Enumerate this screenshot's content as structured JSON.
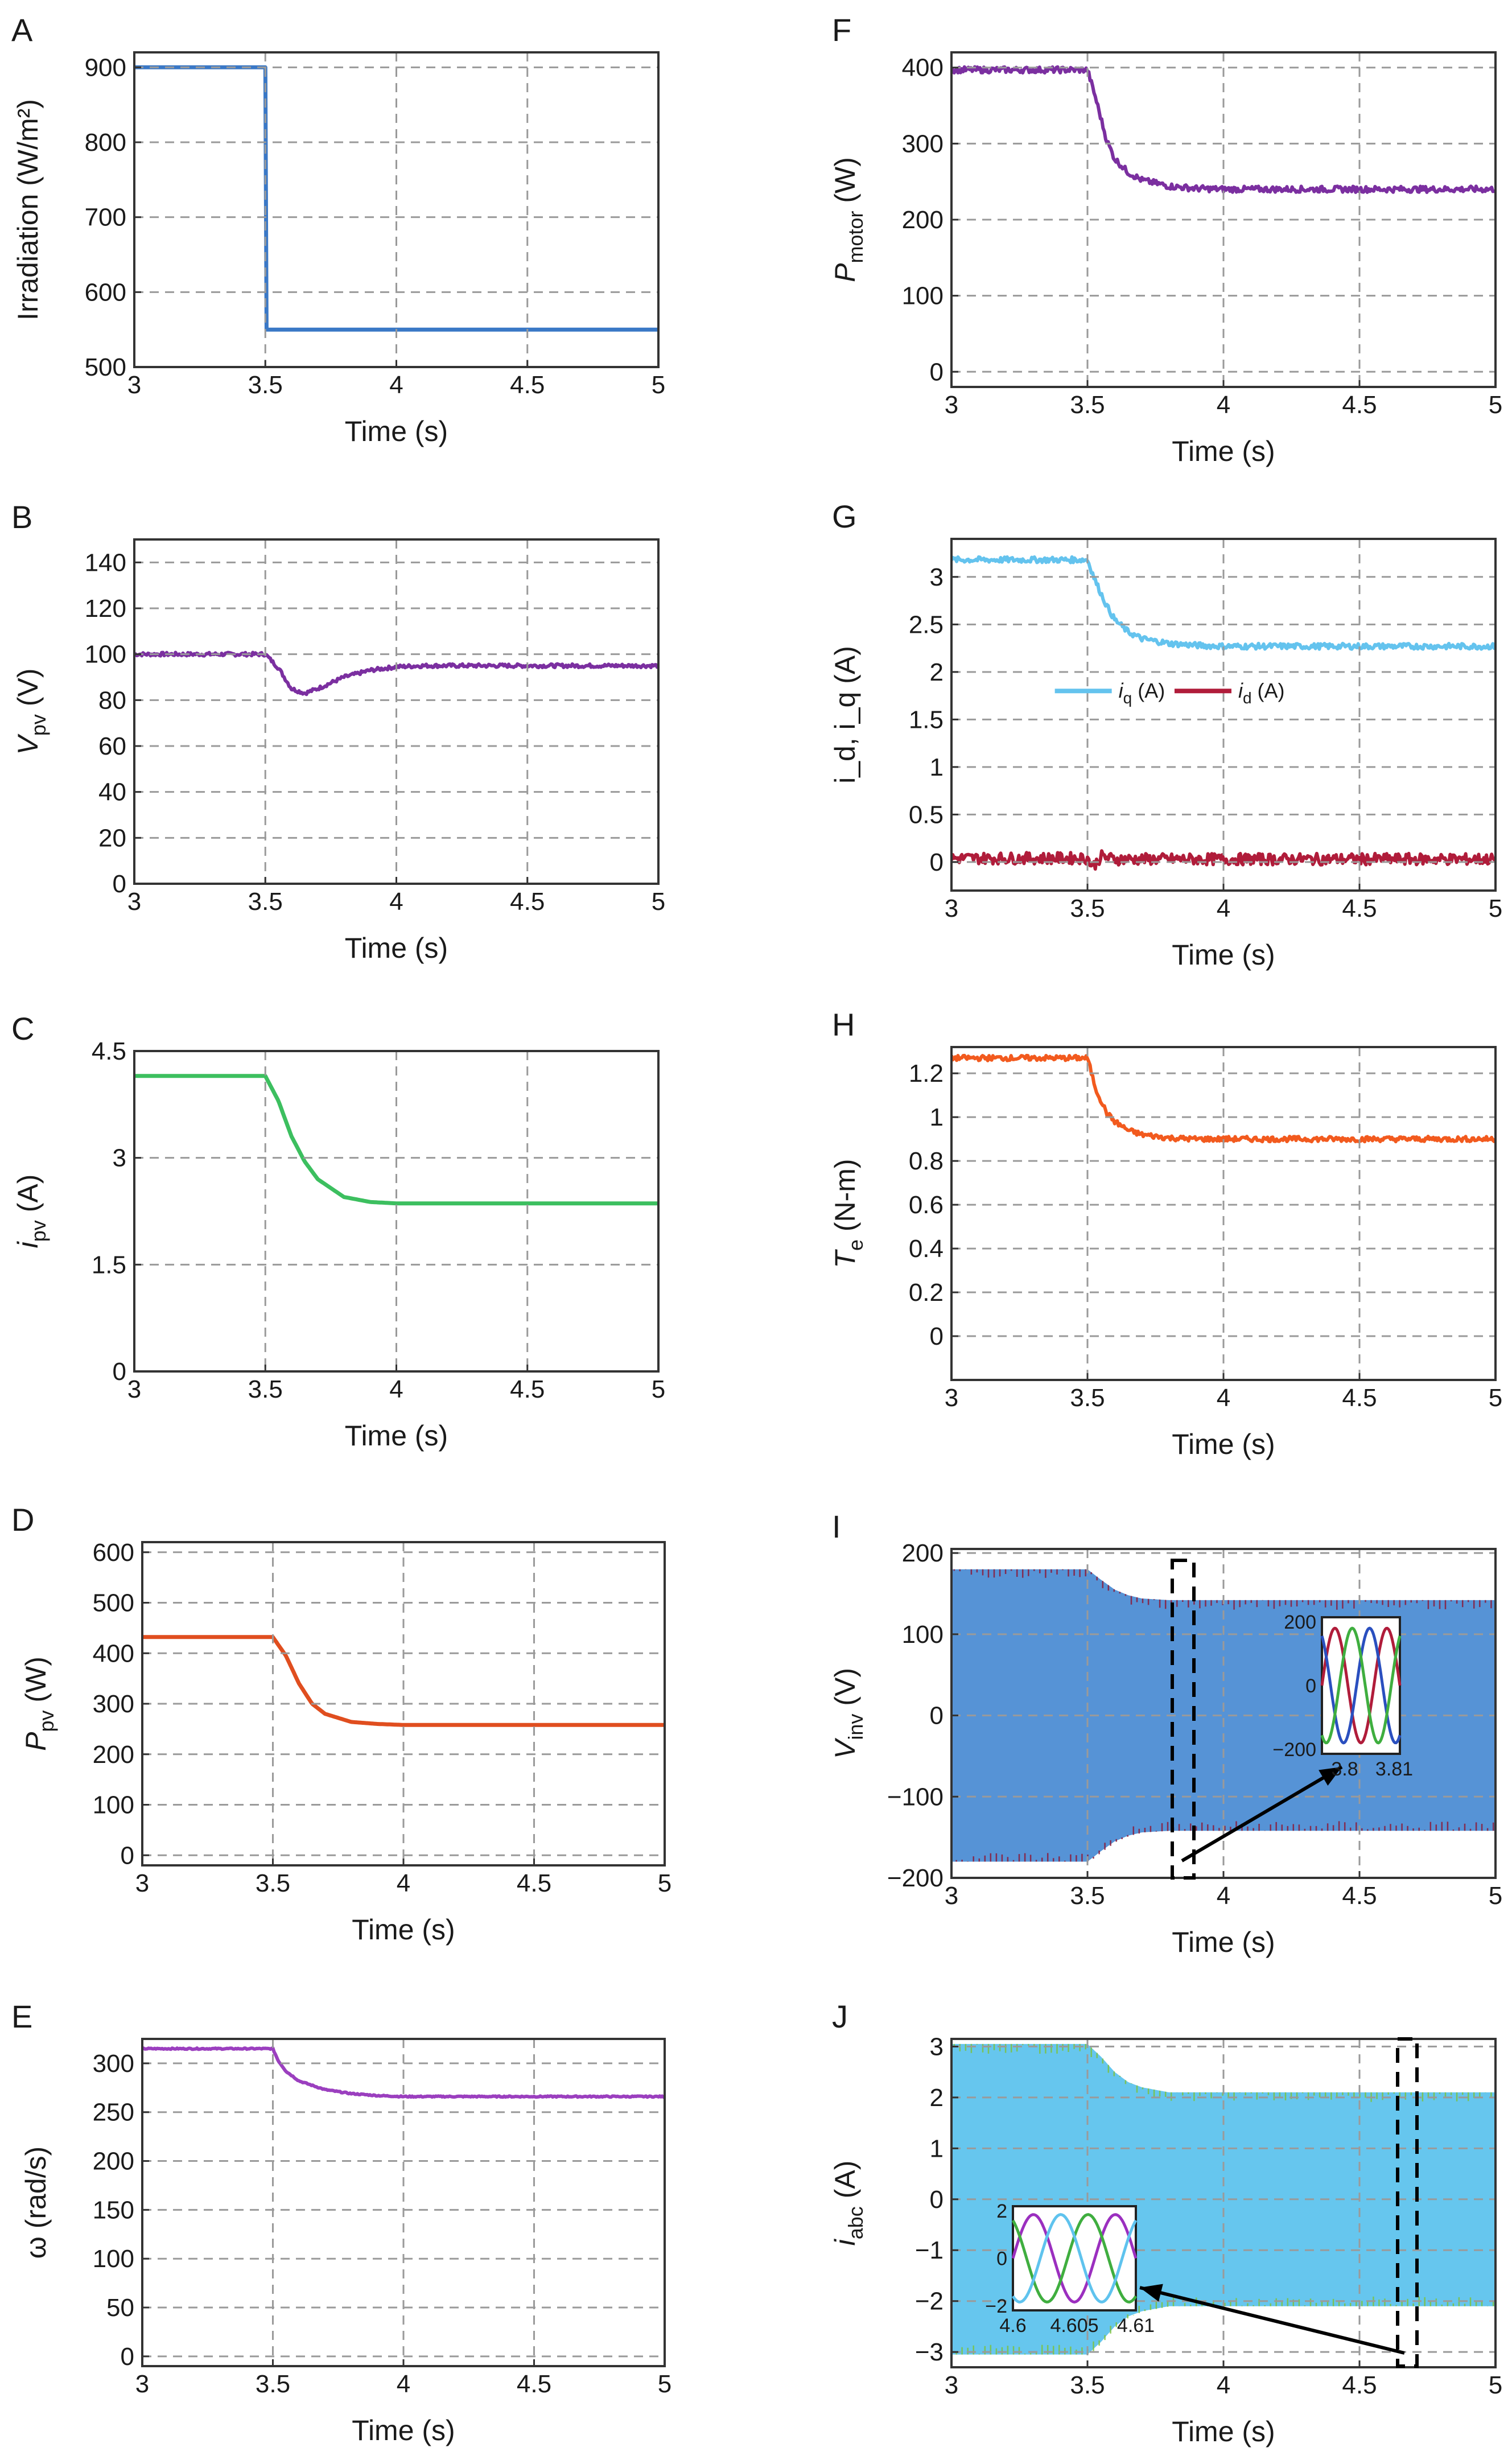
{
  "chart_data": [
    {
      "panel": "A",
      "type": "line",
      "xlabel": "Time (s)",
      "ylabel": "Irradiation (W/m²)",
      "xlim": [
        3,
        5
      ],
      "ylim": [
        500,
        920
      ],
      "xticks": [
        3,
        3.5,
        4,
        4.5,
        5
      ],
      "xtick_labels": [
        "3",
        "3.5",
        "4",
        "4.5",
        "5"
      ],
      "yticks": [
        500,
        600,
        700,
        800,
        900
      ],
      "ytick_labels": [
        "500",
        "600",
        "700",
        "800",
        "900"
      ],
      "grid": true,
      "series": [
        {
          "name": "Irradiation",
          "color": "#3a78c6",
          "noise": 0,
          "x": [
            3,
            3.5,
            3.5,
            5
          ],
          "y": [
            900,
            900,
            550,
            550
          ]
        }
      ]
    },
    {
      "panel": "B",
      "type": "line",
      "xlabel": "Time (s)",
      "ylabel": "V_pv (V)",
      "ylabel_main": "V",
      "ylabel_sub": "pv",
      "ylabel_unit": " (V)",
      "xlim": [
        3,
        5
      ],
      "ylim": [
        0,
        150
      ],
      "xticks": [
        3,
        3.5,
        4,
        4.5,
        5
      ],
      "xtick_labels": [
        "3",
        "3.5",
        "4",
        "4.5",
        "5"
      ],
      "yticks": [
        0,
        20,
        40,
        60,
        80,
        100,
        120,
        140
      ],
      "ytick_labels": [
        "0",
        "20",
        "40",
        "60",
        "80",
        "100",
        "120",
        "140"
      ],
      "grid": true,
      "series": [
        {
          "name": "Vpv",
          "color": "#7b2fa0",
          "noise": 0.8,
          "x": [
            3,
            3.5,
            3.55,
            3.6,
            3.65,
            3.7,
            3.8,
            3.9,
            4.0,
            4.1,
            5
          ],
          "y": [
            100,
            100,
            94,
            85,
            83,
            85,
            90,
            93,
            94.5,
            95,
            95
          ]
        }
      ]
    },
    {
      "panel": "C",
      "type": "line",
      "xlabel": "Time (s)",
      "ylabel": "i_pv (A)",
      "ylabel_main": "i",
      "ylabel_sub": "pv",
      "ylabel_unit": " (A)",
      "xlim": [
        3,
        5
      ],
      "ylim": [
        0,
        4.5
      ],
      "xticks": [
        3,
        3.5,
        4,
        4.5,
        5
      ],
      "xtick_labels": [
        "3",
        "3.5",
        "4",
        "4.5",
        "5"
      ],
      "yticks": [
        0,
        1.5,
        3,
        4.5
      ],
      "ytick_labels": [
        "0",
        "1.5",
        "3",
        "4.5"
      ],
      "grid": true,
      "series": [
        {
          "name": "ipv",
          "color": "#3cbf5f",
          "noise": 0,
          "x": [
            3,
            3.5,
            3.55,
            3.6,
            3.65,
            3.7,
            3.8,
            3.9,
            4.0,
            5
          ],
          "y": [
            4.15,
            4.15,
            3.8,
            3.3,
            2.95,
            2.7,
            2.45,
            2.38,
            2.36,
            2.36
          ]
        }
      ]
    },
    {
      "panel": "D",
      "type": "line",
      "xlabel": "Time (s)",
      "ylabel": "P_pv (W)",
      "ylabel_main": "P",
      "ylabel_sub": "pv",
      "ylabel_unit": " (W)",
      "xlim": [
        3,
        5
      ],
      "ylim": [
        -20,
        620
      ],
      "xticks": [
        3,
        3.5,
        4,
        4.5,
        5
      ],
      "xtick_labels": [
        "3",
        "3.5",
        "4",
        "4.5",
        "5"
      ],
      "yticks": [
        0,
        100,
        200,
        300,
        400,
        500,
        600
      ],
      "ytick_labels": [
        "0",
        "100",
        "200",
        "300",
        "400",
        "500",
        "600"
      ],
      "grid": true,
      "series": [
        {
          "name": "Ppv",
          "color": "#e04e1f",
          "noise": 0,
          "x": [
            3,
            3.5,
            3.55,
            3.6,
            3.65,
            3.7,
            3.8,
            3.9,
            4.0,
            5
          ],
          "y": [
            432,
            432,
            395,
            340,
            300,
            280,
            264,
            260,
            258,
            258
          ]
        }
      ]
    },
    {
      "panel": "E",
      "type": "line",
      "xlabel": "Time (s)",
      "ylabel": "ω (rad/s)",
      "xlim": [
        3,
        5
      ],
      "ylim": [
        -10,
        325
      ],
      "xticks": [
        3,
        3.5,
        4,
        4.5,
        5
      ],
      "xtick_labels": [
        "3",
        "3.5",
        "4",
        "4.5",
        "5"
      ],
      "yticks": [
        0,
        50,
        100,
        150,
        200,
        250,
        300
      ],
      "ytick_labels": [
        "0",
        "50",
        "100",
        "150",
        "200",
        "250",
        "300"
      ],
      "grid": true,
      "series": [
        {
          "name": "omega",
          "color": "#9b3fbf",
          "noise": 0.6,
          "x": [
            3,
            3.5,
            3.52,
            3.55,
            3.6,
            3.7,
            3.8,
            3.9,
            4.0,
            5
          ],
          "y": [
            315,
            315,
            303,
            292,
            282,
            273,
            269,
            267,
            266,
            266
          ]
        }
      ]
    },
    {
      "panel": "F",
      "type": "line",
      "xlabel": "Time (s)",
      "ylabel": "P_motor (W)",
      "ylabel_main": "P",
      "ylabel_sub": "motor",
      "ylabel_unit": " (W)",
      "xlim": [
        3,
        5
      ],
      "ylim": [
        -20,
        420
      ],
      "xticks": [
        3,
        3.5,
        4,
        4.5,
        5
      ],
      "xtick_labels": [
        "3",
        "3.5",
        "4",
        "4.5",
        "5"
      ],
      "yticks": [
        0,
        100,
        200,
        300,
        400
      ],
      "ytick_labels": [
        "0",
        "100",
        "200",
        "300",
        "400"
      ],
      "grid": true,
      "series": [
        {
          "name": "Pmotor",
          "color": "#7b2fa0",
          "noise": 4,
          "x": [
            3,
            3.5,
            3.53,
            3.57,
            3.6,
            3.65,
            3.7,
            3.8,
            3.9,
            4.0,
            5
          ],
          "y": [
            397,
            397,
            360,
            305,
            280,
            262,
            252,
            244,
            241,
            240,
            240
          ]
        }
      ]
    },
    {
      "panel": "G",
      "type": "line",
      "xlabel": "Time (s)",
      "ylabel": "i_d, i_q (A)",
      "xlim": [
        3,
        5
      ],
      "ylim": [
        -0.3,
        3.4
      ],
      "xticks": [
        3,
        3.5,
        4,
        4.5,
        5
      ],
      "xtick_labels": [
        "3",
        "3.5",
        "4",
        "4.5",
        "5"
      ],
      "yticks": [
        0,
        0.5,
        1,
        1.5,
        2,
        2.5,
        3
      ],
      "ytick_labels": [
        "0",
        "0.5",
        "1",
        "1.5",
        "2",
        "2.5",
        "3"
      ],
      "grid": true,
      "legend_label_i": "i",
      "legend_sub_q": "q",
      "legend_sub_d": "d",
      "legend_unit": " (A)",
      "series": [
        {
          "name": "iq (A)",
          "color": "#64c3ee",
          "noise": 0.03,
          "x": [
            3,
            3.5,
            3.53,
            3.57,
            3.6,
            3.65,
            3.7,
            3.8,
            3.9,
            4.0,
            5
          ],
          "y": [
            3.18,
            3.18,
            2.95,
            2.7,
            2.55,
            2.42,
            2.35,
            2.3,
            2.28,
            2.27,
            2.27
          ]
        },
        {
          "name": "id (A)",
          "color": "#b01c3a",
          "noise": 0.06,
          "x": [
            3,
            3.5,
            3.52,
            3.55,
            3.6,
            5
          ],
          "y": [
            0.04,
            0.04,
            -0.05,
            0.06,
            0.03,
            0.03
          ]
        }
      ]
    },
    {
      "panel": "H",
      "type": "line",
      "xlabel": "Time (s)",
      "ylabel": "T_e (N-m)",
      "ylabel_main": "T",
      "ylabel_sub": "e",
      "ylabel_unit": " (N-m)",
      "xlim": [
        3,
        5
      ],
      "ylim": [
        -0.2,
        1.32
      ],
      "xticks": [
        3,
        3.5,
        4,
        4.5,
        5
      ],
      "xtick_labels": [
        "3",
        "3.5",
        "4",
        "4.5",
        "5"
      ],
      "yticks": [
        0,
        0.2,
        0.4,
        0.6,
        0.8,
        1,
        1.2
      ],
      "ytick_labels": [
        "0",
        "0.2",
        "0.4",
        "0.6",
        "0.8",
        "1",
        "1.2"
      ],
      "grid": true,
      "series": [
        {
          "name": "Te",
          "color": "#f25a1e",
          "noise": 0.012,
          "x": [
            3,
            3.5,
            3.53,
            3.57,
            3.6,
            3.65,
            3.7,
            3.8,
            3.9,
            4.0,
            5
          ],
          "y": [
            1.27,
            1.27,
            1.13,
            1.02,
            0.98,
            0.94,
            0.92,
            0.905,
            0.9,
            0.9,
            0.9
          ]
        }
      ]
    },
    {
      "panel": "I",
      "type": "area",
      "xlabel": "Time (s)",
      "ylabel": "V_inv (V)",
      "ylabel_main": "V",
      "ylabel_sub": "inv",
      "ylabel_unit": " (V)",
      "xlim": [
        3,
        5
      ],
      "ylim": [
        -200,
        205
      ],
      "xticks": [
        3,
        3.5,
        4,
        4.5,
        5
      ],
      "xtick_labels": [
        "3",
        "3.5",
        "4",
        "4.5",
        "5"
      ],
      "yticks": [
        -200,
        -100,
        0,
        100,
        200
      ],
      "ytick_labels": [
        "−200",
        "−100",
        "0",
        "100",
        "200"
      ],
      "grid": true,
      "envelope": {
        "color": "#5693d6",
        "spike_color": "#8b1a3a",
        "x": [
          3,
          3.5,
          3.55,
          3.6,
          3.65,
          3.7,
          3.8,
          5
        ],
        "upper": [
          180,
          180,
          167,
          155,
          148,
          144,
          142,
          142
        ],
        "lower": [
          -180,
          -180,
          -167,
          -155,
          -148,
          -144,
          -142,
          -142
        ]
      },
      "inset": {
        "xticks": [
          "3.8",
          "3.81"
        ],
        "yticks": [
          "200",
          "0",
          "−200"
        ],
        "amplitude": 142
      }
    },
    {
      "panel": "J",
      "type": "area",
      "xlabel": "Time (s)",
      "ylabel": "i_abc (A)",
      "ylabel_main": "i",
      "ylabel_sub": "abc",
      "ylabel_unit": " (A)",
      "xlim": [
        3,
        5
      ],
      "ylim": [
        -3.3,
        3.15
      ],
      "xticks": [
        3,
        3.5,
        4,
        4.5,
        5
      ],
      "xtick_labels": [
        "3",
        "3.5",
        "4",
        "4.5",
        "5"
      ],
      "yticks": [
        -3,
        -2,
        -1,
        0,
        1,
        2,
        3
      ],
      "ytick_labels": [
        "−3",
        "−2",
        "−1",
        "0",
        "1",
        "2",
        "3"
      ],
      "grid": true,
      "envelope": {
        "color": "#66c6ee",
        "spike_color": "#7cc240",
        "x": [
          3,
          3.5,
          3.55,
          3.6,
          3.65,
          3.7,
          3.8,
          5
        ],
        "upper": [
          3.05,
          3.05,
          2.8,
          2.5,
          2.3,
          2.2,
          2.1,
          2.1
        ],
        "lower": [
          -3.05,
          -3.05,
          -2.8,
          -2.5,
          -2.3,
          -2.2,
          -2.1,
          -2.1
        ]
      },
      "inset": {
        "xticks": [
          "4.6",
          "4.605",
          "4.61"
        ],
        "yticks": [
          "2",
          "0",
          "−2"
        ],
        "amplitude": 2.1
      }
    }
  ]
}
